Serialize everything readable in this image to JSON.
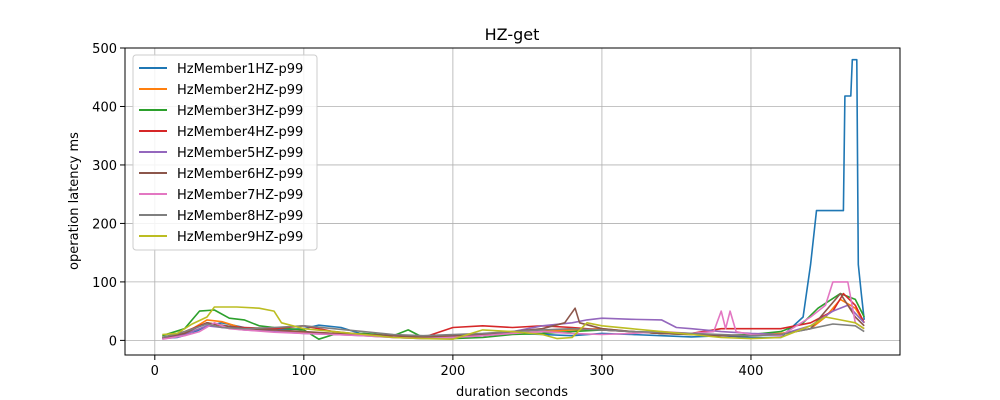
{
  "chart_data": {
    "type": "line",
    "title": "HZ-get",
    "xlabel": "duration seconds",
    "ylabel": "operation latency ms",
    "xlim": [
      -20,
      500
    ],
    "ylim": [
      -25,
      500
    ],
    "xticks": [
      0,
      100,
      200,
      300,
      400
    ],
    "yticks": [
      0,
      100,
      200,
      300,
      400,
      500
    ],
    "grid": true,
    "legend_position": "upper-left",
    "series": [
      {
        "name": "HzMember1HZ-p99",
        "color": "#1f77b4",
        "points": [
          [
            5,
            3
          ],
          [
            15,
            5
          ],
          [
            25,
            12
          ],
          [
            35,
            25
          ],
          [
            45,
            30
          ],
          [
            60,
            22
          ],
          [
            80,
            18
          ],
          [
            100,
            20
          ],
          [
            110,
            26
          ],
          [
            125,
            22
          ],
          [
            140,
            10
          ],
          [
            160,
            8
          ],
          [
            180,
            6
          ],
          [
            200,
            5
          ],
          [
            220,
            8
          ],
          [
            240,
            12
          ],
          [
            260,
            10
          ],
          [
            280,
            8
          ],
          [
            300,
            12
          ],
          [
            320,
            10
          ],
          [
            340,
            8
          ],
          [
            360,
            6
          ],
          [
            380,
            8
          ],
          [
            400,
            5
          ],
          [
            420,
            5
          ],
          [
            435,
            40
          ],
          [
            440,
            130
          ],
          [
            444,
            222
          ],
          [
            462,
            222
          ],
          [
            463,
            418
          ],
          [
            467,
            418
          ],
          [
            468,
            480
          ],
          [
            471,
            480
          ],
          [
            472,
            130
          ],
          [
            474,
            80
          ],
          [
            476,
            35
          ]
        ]
      },
      {
        "name": "HzMember2HZ-p99",
        "color": "#ff7f0e",
        "points": [
          [
            5,
            5
          ],
          [
            20,
            12
          ],
          [
            35,
            35
          ],
          [
            45,
            32
          ],
          [
            60,
            20
          ],
          [
            80,
            15
          ],
          [
            100,
            14
          ],
          [
            120,
            12
          ],
          [
            140,
            10
          ],
          [
            160,
            8
          ],
          [
            180,
            5
          ],
          [
            200,
            8
          ],
          [
            220,
            10
          ],
          [
            240,
            12
          ],
          [
            260,
            15
          ],
          [
            280,
            18
          ],
          [
            300,
            20
          ],
          [
            320,
            15
          ],
          [
            340,
            12
          ],
          [
            360,
            10
          ],
          [
            380,
            8
          ],
          [
            400,
            10
          ],
          [
            420,
            12
          ],
          [
            440,
            20
          ],
          [
            450,
            40
          ],
          [
            460,
            70
          ],
          [
            470,
            55
          ],
          [
            476,
            30
          ]
        ]
      },
      {
        "name": "HzMember3HZ-p99",
        "color": "#2ca02c",
        "points": [
          [
            5,
            8
          ],
          [
            20,
            20
          ],
          [
            30,
            50
          ],
          [
            40,
            52
          ],
          [
            50,
            38
          ],
          [
            60,
            35
          ],
          [
            70,
            25
          ],
          [
            80,
            22
          ],
          [
            100,
            18
          ],
          [
            110,
            2
          ],
          [
            120,
            10
          ],
          [
            140,
            12
          ],
          [
            160,
            8
          ],
          [
            170,
            18
          ],
          [
            180,
            5
          ],
          [
            200,
            3
          ],
          [
            220,
            5
          ],
          [
            240,
            10
          ],
          [
            260,
            12
          ],
          [
            280,
            15
          ],
          [
            300,
            18
          ],
          [
            320,
            15
          ],
          [
            340,
            12
          ],
          [
            360,
            10
          ],
          [
            380,
            8
          ],
          [
            400,
            10
          ],
          [
            420,
            15
          ],
          [
            435,
            30
          ],
          [
            445,
            55
          ],
          [
            460,
            80
          ],
          [
            470,
            70
          ],
          [
            476,
            40
          ]
        ]
      },
      {
        "name": "HzMember4HZ-p99",
        "color": "#d62728",
        "points": [
          [
            5,
            5
          ],
          [
            20,
            15
          ],
          [
            35,
            30
          ],
          [
            45,
            25
          ],
          [
            60,
            22
          ],
          [
            80,
            20
          ],
          [
            100,
            25
          ],
          [
            120,
            15
          ],
          [
            140,
            10
          ],
          [
            160,
            8
          ],
          [
            180,
            5
          ],
          [
            200,
            22
          ],
          [
            220,
            25
          ],
          [
            240,
            22
          ],
          [
            260,
            25
          ],
          [
            280,
            22
          ],
          [
            300,
            18
          ],
          [
            320,
            15
          ],
          [
            340,
            12
          ],
          [
            360,
            12
          ],
          [
            380,
            20
          ],
          [
            400,
            20
          ],
          [
            420,
            20
          ],
          [
            440,
            30
          ],
          [
            455,
            50
          ],
          [
            462,
            80
          ],
          [
            470,
            60
          ],
          [
            476,
            30
          ]
        ]
      },
      {
        "name": "HzMember5HZ-p99",
        "color": "#9467bd",
        "points": [
          [
            5,
            3
          ],
          [
            20,
            10
          ],
          [
            35,
            25
          ],
          [
            45,
            22
          ],
          [
            60,
            18
          ],
          [
            80,
            15
          ],
          [
            100,
            12
          ],
          [
            120,
            10
          ],
          [
            140,
            8
          ],
          [
            160,
            5
          ],
          [
            180,
            3
          ],
          [
            200,
            5
          ],
          [
            220,
            8
          ],
          [
            240,
            15
          ],
          [
            260,
            25
          ],
          [
            280,
            30
          ],
          [
            290,
            35
          ],
          [
            300,
            38
          ],
          [
            320,
            36
          ],
          [
            340,
            35
          ],
          [
            350,
            22
          ],
          [
            360,
            20
          ],
          [
            380,
            15
          ],
          [
            400,
            12
          ],
          [
            420,
            10
          ],
          [
            440,
            25
          ],
          [
            455,
            50
          ],
          [
            465,
            60
          ],
          [
            476,
            30
          ]
        ]
      },
      {
        "name": "HzMember6HZ-p99",
        "color": "#8c564b",
        "points": [
          [
            5,
            4
          ],
          [
            20,
            12
          ],
          [
            35,
            30
          ],
          [
            45,
            26
          ],
          [
            60,
            20
          ],
          [
            80,
            18
          ],
          [
            100,
            15
          ],
          [
            120,
            12
          ],
          [
            140,
            10
          ],
          [
            160,
            8
          ],
          [
            180,
            6
          ],
          [
            200,
            8
          ],
          [
            220,
            10
          ],
          [
            240,
            15
          ],
          [
            260,
            20
          ],
          [
            275,
            30
          ],
          [
            282,
            55
          ],
          [
            285,
            30
          ],
          [
            300,
            20
          ],
          [
            320,
            15
          ],
          [
            340,
            12
          ],
          [
            360,
            10
          ],
          [
            380,
            8
          ],
          [
            400,
            8
          ],
          [
            420,
            10
          ],
          [
            440,
            20
          ],
          [
            450,
            50
          ],
          [
            460,
            80
          ],
          [
            470,
            40
          ],
          [
            476,
            25
          ]
        ]
      },
      {
        "name": "HzMember7HZ-p99",
        "color": "#e377c2",
        "points": [
          [
            5,
            2
          ],
          [
            20,
            8
          ],
          [
            30,
            15
          ],
          [
            40,
            30
          ],
          [
            50,
            20
          ],
          [
            60,
            18
          ],
          [
            80,
            14
          ],
          [
            100,
            12
          ],
          [
            120,
            10
          ],
          [
            140,
            8
          ],
          [
            160,
            5
          ],
          [
            180,
            3
          ],
          [
            200,
            5
          ],
          [
            220,
            8
          ],
          [
            240,
            12
          ],
          [
            260,
            15
          ],
          [
            280,
            12
          ],
          [
            300,
            10
          ],
          [
            320,
            12
          ],
          [
            340,
            15
          ],
          [
            360,
            12
          ],
          [
            375,
            15
          ],
          [
            380,
            50
          ],
          [
            383,
            20
          ],
          [
            386,
            50
          ],
          [
            390,
            15
          ],
          [
            400,
            10
          ],
          [
            420,
            8
          ],
          [
            440,
            40
          ],
          [
            450,
            60
          ],
          [
            455,
            100
          ],
          [
            465,
            100
          ],
          [
            470,
            30
          ],
          [
            476,
            20
          ]
        ]
      },
      {
        "name": "HzMember8HZ-p99",
        "color": "#7f7f7f",
        "points": [
          [
            5,
            5
          ],
          [
            20,
            15
          ],
          [
            35,
            28
          ],
          [
            45,
            22
          ],
          [
            60,
            20
          ],
          [
            80,
            22
          ],
          [
            100,
            25
          ],
          [
            120,
            20
          ],
          [
            140,
            15
          ],
          [
            160,
            10
          ],
          [
            180,
            8
          ],
          [
            200,
            10
          ],
          [
            220,
            12
          ],
          [
            240,
            15
          ],
          [
            260,
            18
          ],
          [
            280,
            20
          ],
          [
            300,
            18
          ],
          [
            320,
            15
          ],
          [
            340,
            14
          ],
          [
            360,
            12
          ],
          [
            380,
            10
          ],
          [
            400,
            8
          ],
          [
            420,
            10
          ],
          [
            440,
            20
          ],
          [
            455,
            28
          ],
          [
            470,
            25
          ],
          [
            476,
            15
          ]
        ]
      },
      {
        "name": "HzMember9HZ-p99",
        "color": "#bcbd22",
        "points": [
          [
            5,
            10
          ],
          [
            15,
            12
          ],
          [
            25,
            28
          ],
          [
            35,
            40
          ],
          [
            40,
            57
          ],
          [
            55,
            57
          ],
          [
            70,
            55
          ],
          [
            80,
            50
          ],
          [
            85,
            30
          ],
          [
            100,
            20
          ],
          [
            120,
            15
          ],
          [
            140,
            10
          ],
          [
            160,
            5
          ],
          [
            180,
            3
          ],
          [
            200,
            2
          ],
          [
            220,
            18
          ],
          [
            240,
            15
          ],
          [
            260,
            10
          ],
          [
            270,
            3
          ],
          [
            280,
            5
          ],
          [
            290,
            30
          ],
          [
            300,
            25
          ],
          [
            320,
            20
          ],
          [
            340,
            15
          ],
          [
            360,
            10
          ],
          [
            380,
            5
          ],
          [
            400,
            3
          ],
          [
            420,
            5
          ],
          [
            440,
            25
          ],
          [
            450,
            40
          ],
          [
            460,
            35
          ],
          [
            470,
            30
          ],
          [
            476,
            20
          ]
        ]
      }
    ]
  }
}
